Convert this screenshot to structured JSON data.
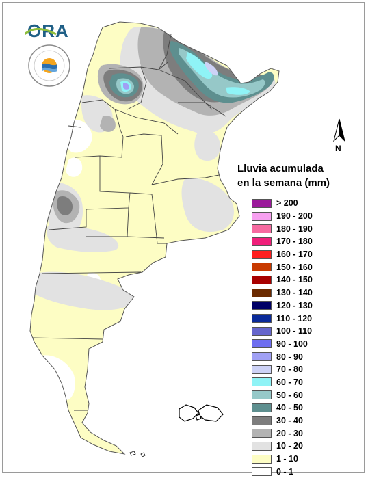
{
  "branding": {
    "ora_logo_text": "ORA",
    "seal_text": "SERVICIO METEOROLÓGICO NACIONAL ARGENTINA",
    "seal_icon": "smn-seal-icon"
  },
  "north_arrow": {
    "label": "N",
    "icon": "north-arrow-icon"
  },
  "legend": {
    "title_line1": "Lluvia acumulada",
    "title_line2": "en la semana (mm)",
    "items": [
      {
        "label": "> 200",
        "color": "#9b1a9b"
      },
      {
        "label": "190 - 200",
        "color": "#f7a0f0"
      },
      {
        "label": "180 - 190",
        "color": "#f66aa0"
      },
      {
        "label": "170 - 180",
        "color": "#ef1f7a"
      },
      {
        "label": "160 - 170",
        "color": "#ff1f1f"
      },
      {
        "label": "150 - 160",
        "color": "#c83a00"
      },
      {
        "label": "140 - 150",
        "color": "#a80000"
      },
      {
        "label": "130 - 140",
        "color": "#6b2a00"
      },
      {
        "label": "120 - 130",
        "color": "#000066"
      },
      {
        "label": "110 - 120",
        "color": "#0a2a99"
      },
      {
        "label": "100 - 110",
        "color": "#6666cc"
      },
      {
        "label": "90 - 100",
        "color": "#6e6ef0"
      },
      {
        "label": "80 - 90",
        "color": "#a0a0f4"
      },
      {
        "label": "70 - 80",
        "color": "#cdd2f6"
      },
      {
        "label": "60 - 70",
        "color": "#8ff3f6"
      },
      {
        "label": "50 - 60",
        "color": "#96c8c8"
      },
      {
        "label": "40 - 50",
        "color": "#5e8f8f"
      },
      {
        "label": "30 - 40",
        "color": "#7d7d7d"
      },
      {
        "label": "20 - 30",
        "color": "#b3b3b3"
      },
      {
        "label": "10 - 20",
        "color": "#e2e2e2"
      },
      {
        "label": "1 - 10",
        "color": "#fdfdc4"
      },
      {
        "label": "0 - 1",
        "color": "#ffffff"
      }
    ]
  }
}
